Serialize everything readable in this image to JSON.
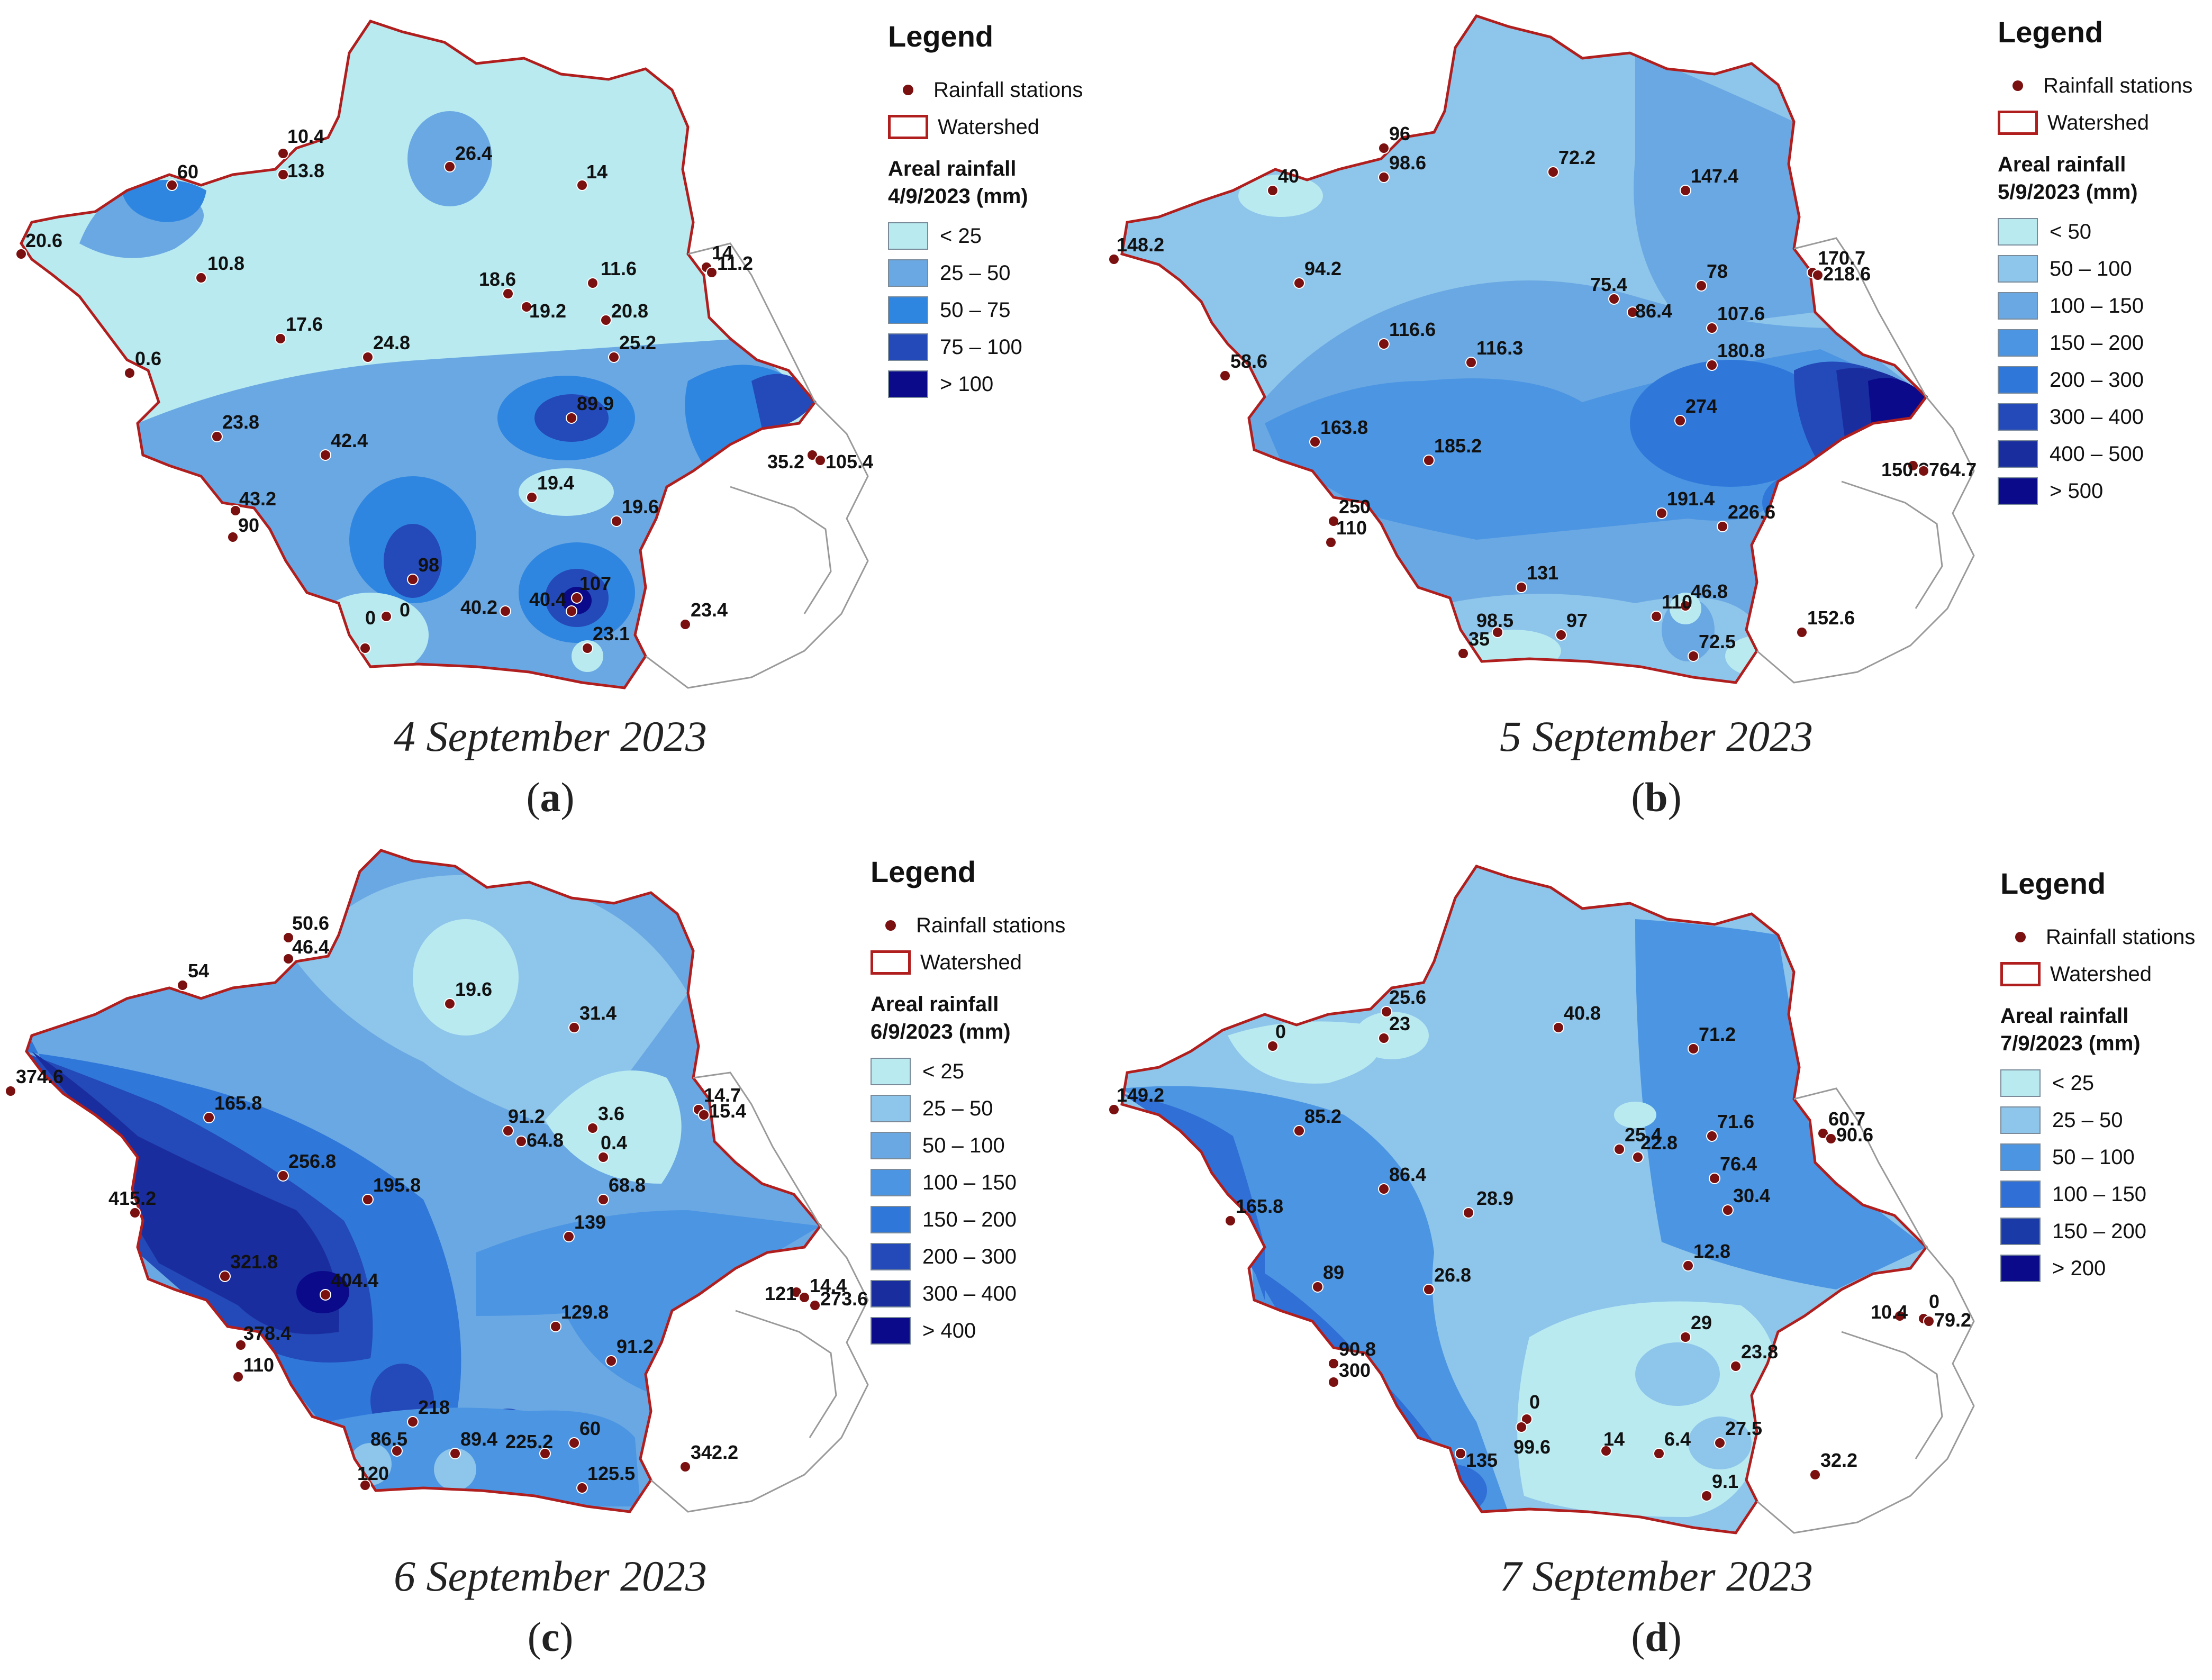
{
  "legend_common": {
    "title": "Legend",
    "stations_label": "Rainfall stations",
    "watershed_label": "Watershed"
  },
  "colors": {
    "watershed_border": "#b01e1e",
    "station_dot": "#7a1010",
    "outside_boundary": "#9a9a9a",
    "scale": [
      "#b8eaf0",
      "#8ec5ea",
      "#6aa8e3",
      "#3b8ae0",
      "#2f6fd6",
      "#2449b8",
      "#1a2d9e",
      "#0a0a8a"
    ]
  },
  "panels": [
    {
      "caption": "4 September 2023",
      "letter": "a",
      "legend_heading": "Areal rainfall",
      "legend_date": "4/9/2023 (mm)",
      "classes": [
        {
          "label": "< 25",
          "color": "#b8eaf0"
        },
        {
          "label": "25 – 50",
          "color": "#6aa8e3"
        },
        {
          "label": "50 – 75",
          "color": "#2f86e0"
        },
        {
          "label": "75 – 100",
          "color": "#2449b8"
        },
        {
          "label": "> 100",
          "color": "#0a0a8a"
        }
      ],
      "stations": [
        "10.4",
        "13.8",
        "60",
        "26.4",
        "14",
        "20.6",
        "10.8",
        "18.6",
        "11.6",
        "14",
        "11.2",
        "19.2",
        "20.8",
        "17.6",
        "24.8",
        "25.2",
        "0.6",
        "89.9",
        "23.8",
        "42.4",
        "35.2",
        "105.4",
        "43.2",
        "19.4",
        "19.6",
        "90",
        "98",
        "0",
        "107",
        "40.2",
        "40.4",
        "0",
        "23.1",
        "23.4"
      ]
    },
    {
      "caption": "5 September 2023",
      "letter": "b",
      "legend_heading": "Areal rainfall",
      "legend_date": "5/9/2023 (mm)",
      "classes": [
        {
          "label": "< 50",
          "color": "#b8eaf0"
        },
        {
          "label": "50 – 100",
          "color": "#8ec5ea"
        },
        {
          "label": "100 – 150",
          "color": "#6aa8e3"
        },
        {
          "label": "150 – 200",
          "color": "#4b95e2"
        },
        {
          "label": "200 – 300",
          "color": "#2f78da"
        },
        {
          "label": "300 – 400",
          "color": "#2449b8"
        },
        {
          "label": "400 – 500",
          "color": "#1a2d9e"
        },
        {
          "label": "> 500",
          "color": "#0a0a8a"
        }
      ],
      "stations": [
        "96",
        "98.6",
        "40",
        "72.2",
        "147.4",
        "148.2",
        "94.2",
        "75.4",
        "78",
        "170.7",
        "218.6",
        "86.4",
        "107.6",
        "116.6",
        "116.3",
        "180.8",
        "58.6",
        "274",
        "163.8",
        "185.2",
        "150.8",
        "764.7",
        "250",
        "191.4",
        "226.6",
        "110",
        "131",
        "46.8",
        "98.5",
        "97",
        "110",
        "35",
        "72.5",
        "152.6"
      ]
    },
    {
      "caption": "6 September 2023",
      "letter": "c",
      "legend_heading": "Areal rainfall",
      "legend_date": "6/9/2023 (mm)",
      "classes": [
        {
          "label": "< 25",
          "color": "#b8eaf0"
        },
        {
          "label": "25 – 50",
          "color": "#8ec5ea"
        },
        {
          "label": "50 – 100",
          "color": "#6aa8e3"
        },
        {
          "label": "100 – 150",
          "color": "#4b95e2"
        },
        {
          "label": "150 – 200",
          "color": "#2f78da"
        },
        {
          "label": "200 – 300",
          "color": "#2449b8"
        },
        {
          "label": "300 – 400",
          "color": "#1a2d9e"
        },
        {
          "label": "> 400",
          "color": "#0a0a8a"
        }
      ],
      "stations": [
        "50.6",
        "46.4",
        "54",
        "19.6",
        "31.4",
        "374.6",
        "165.8",
        "91.2",
        "3.6",
        "14.7",
        "15.4",
        "64.8",
        "0.4",
        "256.8",
        "195.8",
        "68.8",
        "415.2",
        "139",
        "321.8",
        "404.4",
        "121",
        "14.4",
        "273.6",
        "129.8",
        "378.4",
        "91.2",
        "110",
        "218",
        "86.5",
        "60",
        "89.4",
        "225.2",
        "120",
        "125.5",
        "342.2"
      ]
    },
    {
      "caption": "7 September 2023",
      "letter": "d",
      "legend_heading": "Areal rainfall",
      "legend_date": "7/9/2023 (mm)",
      "classes": [
        {
          "label": "< 25",
          "color": "#b8eaf0"
        },
        {
          "label": "25 – 50",
          "color": "#8ec5ea"
        },
        {
          "label": "50 – 100",
          "color": "#4b95e2"
        },
        {
          "label": "100 – 150",
          "color": "#2f6fd6"
        },
        {
          "label": "150 – 200",
          "color": "#1a3aa8"
        },
        {
          "label": "> 200",
          "color": "#0a0a8a"
        }
      ],
      "stations": [
        "25.6",
        "0",
        "23",
        "40.8",
        "71.2",
        "149.2",
        "85.2",
        "25.4",
        "22.8",
        "71.6",
        "60.7",
        "90.6",
        "76.4",
        "86.4",
        "28.9",
        "30.4",
        "165.8",
        "12.8",
        "89",
        "26.8",
        "10.4",
        "0",
        "79.2",
        "29",
        "90.8",
        "23.8",
        "300",
        "0",
        "99.6",
        "14",
        "6.4",
        "27.5",
        "135",
        "9.1",
        "32.2"
      ]
    }
  ]
}
